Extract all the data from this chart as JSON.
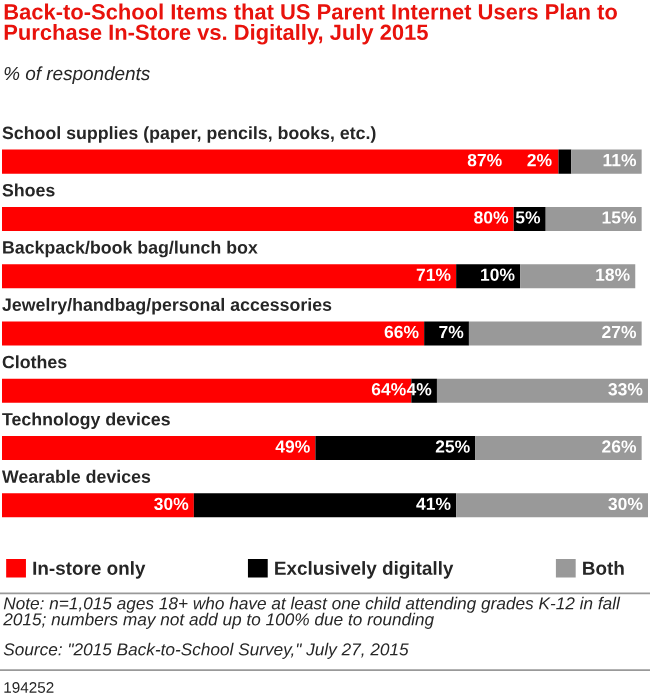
{
  "chart_data": {
    "type": "bar",
    "orientation": "horizontal",
    "stacked": true,
    "legend": "bottom",
    "title": "Back-to-School Items that US Parent Internet Users Plan to Purchase In-Store vs. Digitally, July 2015",
    "subtitle": "% of respondents",
    "categories": [
      "School supplies (paper, pencils, books, etc.)",
      "Shoes",
      "Backpack/book bag/lunch box",
      "Jewelry/handbag/personal accessories",
      "Clothes",
      "Technology devices",
      "Wearable devices"
    ],
    "series": [
      {
        "name": "In-store only",
        "color": "#ff0000",
        "values": [
          87,
          80,
          71,
          66,
          64,
          49,
          30
        ],
        "value_labels": [
          "87%",
          "80%",
          "71%",
          "66%",
          "64%",
          "49%",
          "30%"
        ]
      },
      {
        "name": "Exclusively digitally",
        "color": "#000000",
        "values": [
          2,
          5,
          10,
          7,
          4,
          25,
          41
        ],
        "value_labels": [
          "2%",
          "5%",
          "10%",
          "7%",
          "4%",
          "25%",
          "41%"
        ]
      },
      {
        "name": "Both",
        "color": "#999999",
        "values": [
          11,
          15,
          18,
          27,
          33,
          26,
          30
        ],
        "value_labels": [
          "11%",
          "15%",
          "18%",
          "27%",
          "33%",
          "26%",
          "30%"
        ]
      }
    ],
    "annotations": [
      "Note: n=1,015 ages 18+ who have at least one child attending grades K-12 in fall 2015; numbers may not add up to 100% due to rounding",
      "Source: \"2015 Back-to-School Survey,\" July 27, 2015",
      "194252"
    ]
  }
}
